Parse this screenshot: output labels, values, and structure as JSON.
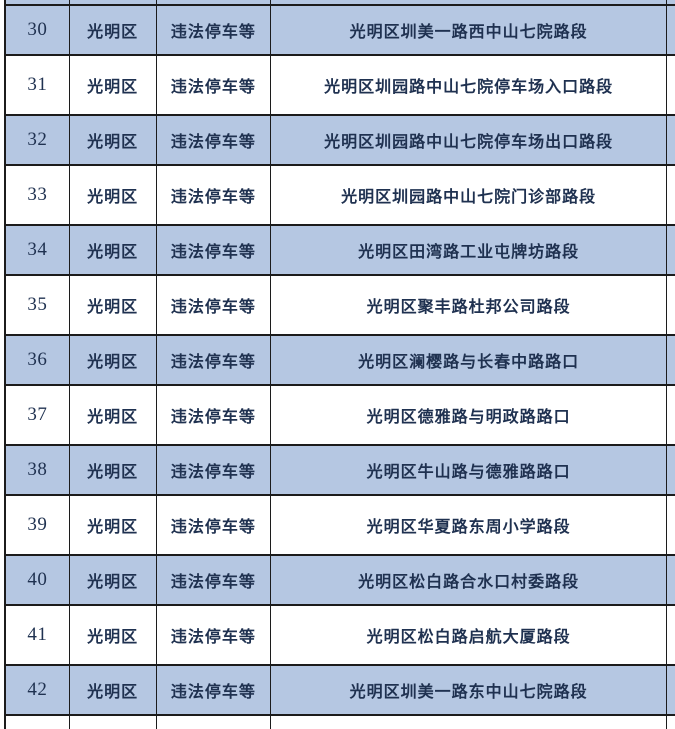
{
  "colors": {
    "row_blue": "#b5c7e2",
    "row_white": "#ffffff",
    "border_dark": "#1c1c1c",
    "text_dark": "#1f3150"
  },
  "table": {
    "rows": [
      {
        "no": "30",
        "district": "光明区",
        "violation": "违法停车等",
        "location": "光明区圳美一路西中山七院路段"
      },
      {
        "no": "31",
        "district": "光明区",
        "violation": "违法停车等",
        "location": "光明区圳园路中山七院停车场入口路段"
      },
      {
        "no": "32",
        "district": "光明区",
        "violation": "违法停车等",
        "location": "光明区圳园路中山七院停车场出口路段"
      },
      {
        "no": "33",
        "district": "光明区",
        "violation": "违法停车等",
        "location": "光明区圳园路中山七院门诊部路段"
      },
      {
        "no": "34",
        "district": "光明区",
        "violation": "违法停车等",
        "location": "光明区田湾路工业屯牌坊路段"
      },
      {
        "no": "35",
        "district": "光明区",
        "violation": "违法停车等",
        "location": "光明区聚丰路杜邦公司路段"
      },
      {
        "no": "36",
        "district": "光明区",
        "violation": "违法停车等",
        "location": "光明区澜樱路与长春中路路口"
      },
      {
        "no": "37",
        "district": "光明区",
        "violation": "违法停车等",
        "location": "光明区德雅路与明政路路口"
      },
      {
        "no": "38",
        "district": "光明区",
        "violation": "违法停车等",
        "location": "光明区牛山路与德雅路路口"
      },
      {
        "no": "39",
        "district": "光明区",
        "violation": "违法停车等",
        "location": "光明区华夏路东周小学路段"
      },
      {
        "no": "40",
        "district": "光明区",
        "violation": "违法停车等",
        "location": "光明区松白路合水口村委路段"
      },
      {
        "no": "41",
        "district": "光明区",
        "violation": "违法停车等",
        "location": "光明区松白路启航大厦路段"
      },
      {
        "no": "42",
        "district": "光明区",
        "violation": "违法停车等",
        "location": "光明区圳美一路东中山七院路段"
      }
    ]
  }
}
